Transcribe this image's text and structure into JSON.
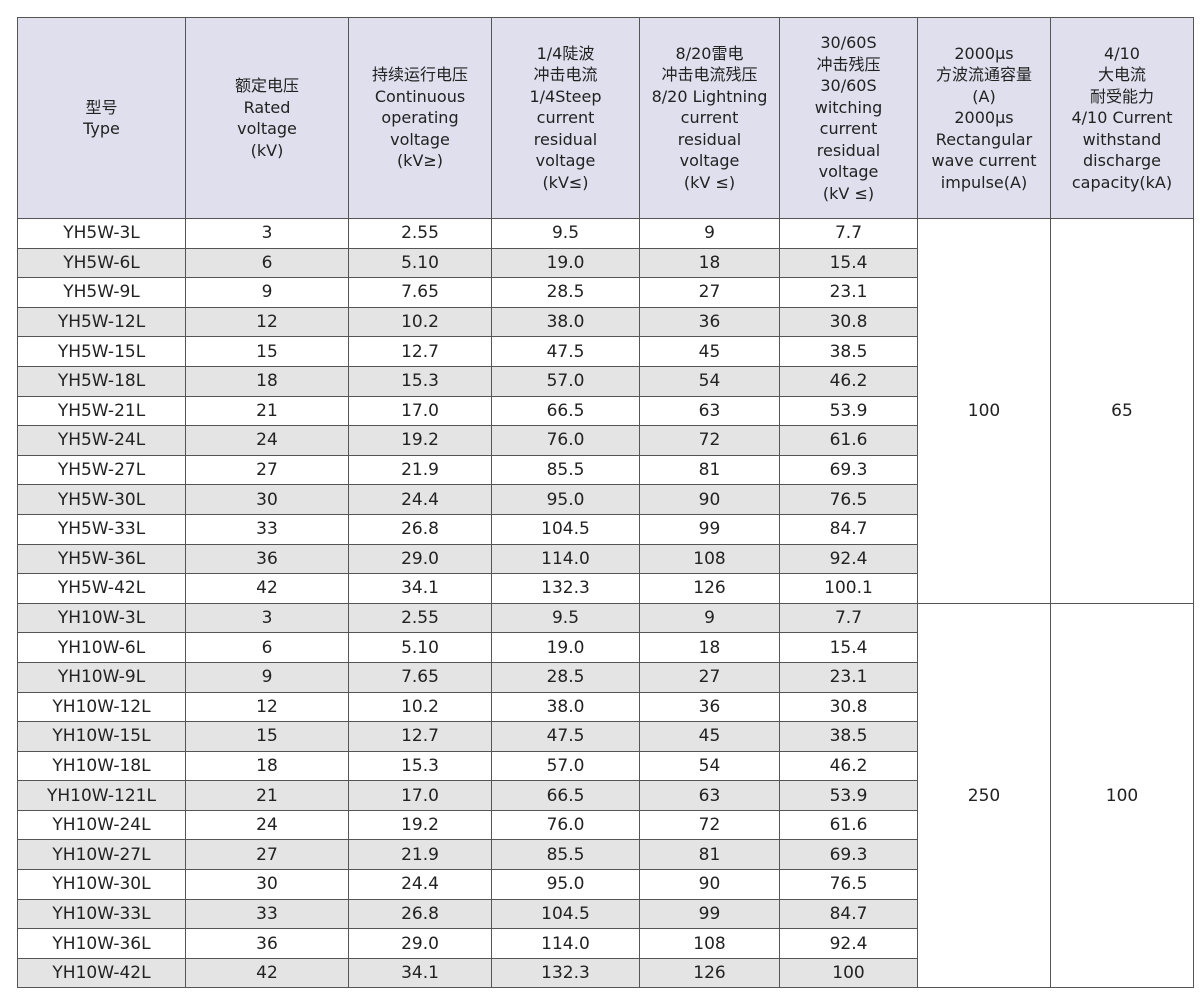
{
  "table": {
    "headers": [
      [
        "型号",
        "Type"
      ],
      [
        "额定电压",
        "Rated",
        "voltage",
        "(kV)"
      ],
      [
        "持续运行电压",
        "Continuous",
        "operating",
        "voltage",
        "(kV≥)"
      ],
      [
        "1/4陡波",
        "冲击电流",
        "1/4Steep",
        "current",
        "residual",
        "voltage",
        "(kV≤)"
      ],
      [
        "8/20雷电",
        "冲击电流残压",
        "8/20 Lightning",
        "current",
        "residual",
        "voltage",
        "(kV ≤)"
      ],
      [
        "30/60S",
        "冲击残压",
        "30/60S",
        "witching",
        "current",
        "residual",
        "voltage",
        "(kV ≤)"
      ],
      [
        "2000μs",
        "方波流通容量",
        "(A)",
        "2000μs",
        "Rectangular",
        "wave current",
        "impulse(A)"
      ],
      [
        "4/10",
        "大电流",
        "耐受能力",
        "4/10 Current",
        "withstand",
        "discharge",
        "capacity(kA)"
      ]
    ],
    "rows": [
      [
        "YH5W-3L",
        "3",
        "2.55",
        "9.5",
        "9",
        "7.7"
      ],
      [
        "YH5W-6L",
        "6",
        "5.10",
        "19.0",
        "18",
        "15.4"
      ],
      [
        "YH5W-9L",
        "9",
        "7.65",
        "28.5",
        "27",
        "23.1"
      ],
      [
        "YH5W-12L",
        "12",
        "10.2",
        "38.0",
        "36",
        "30.8"
      ],
      [
        "YH5W-15L",
        "15",
        "12.7",
        "47.5",
        "45",
        "38.5"
      ],
      [
        "YH5W-18L",
        "18",
        "15.3",
        "57.0",
        "54",
        "46.2"
      ],
      [
        "YH5W-21L",
        "21",
        "17.0",
        "66.5",
        "63",
        "53.9"
      ],
      [
        "YH5W-24L",
        "24",
        "19.2",
        "76.0",
        "72",
        "61.6"
      ],
      [
        "YH5W-27L",
        "27",
        "21.9",
        "85.5",
        "81",
        "69.3"
      ],
      [
        "YH5W-30L",
        "30",
        "24.4",
        "95.0",
        "90",
        "76.5"
      ],
      [
        "YH5W-33L",
        "33",
        "26.8",
        "104.5",
        "99",
        "84.7"
      ],
      [
        "YH5W-36L",
        "36",
        "29.0",
        "114.0",
        "108",
        "92.4"
      ],
      [
        "YH5W-42L",
        "42",
        "34.1",
        "132.3",
        "126",
        "100.1"
      ],
      [
        "YH10W-3L",
        "3",
        "2.55",
        "9.5",
        "9",
        "7.7"
      ],
      [
        "YH10W-6L",
        "6",
        "5.10",
        "19.0",
        "18",
        "15.4"
      ],
      [
        "YH10W-9L",
        "9",
        "7.65",
        "28.5",
        "27",
        "23.1"
      ],
      [
        "YH10W-12L",
        "12",
        "10.2",
        "38.0",
        "36",
        "30.8"
      ],
      [
        "YH10W-15L",
        "15",
        "12.7",
        "47.5",
        "45",
        "38.5"
      ],
      [
        "YH10W-18L",
        "18",
        "15.3",
        "57.0",
        "54",
        "46.2"
      ],
      [
        "YH10W-121L",
        "21",
        "17.0",
        "66.5",
        "63",
        "53.9"
      ],
      [
        "YH10W-24L",
        "24",
        "19.2",
        "76.0",
        "72",
        "61.6"
      ],
      [
        "YH10W-27L",
        "27",
        "21.9",
        "85.5",
        "81",
        "69.3"
      ],
      [
        "YH10W-30L",
        "30",
        "24.4",
        "95.0",
        "90",
        "76.5"
      ],
      [
        "YH10W-33L",
        "33",
        "26.8",
        "104.5",
        "99",
        "84.7"
      ],
      [
        "YH10W-36L",
        "36",
        "29.0",
        "114.0",
        "108",
        "92.4"
      ],
      [
        "YH10W-42L",
        "42",
        "34.1",
        "132.3",
        "126",
        "100"
      ]
    ],
    "groups": [
      [
        "100",
        "65"
      ],
      [
        "250",
        "100"
      ]
    ]
  }
}
